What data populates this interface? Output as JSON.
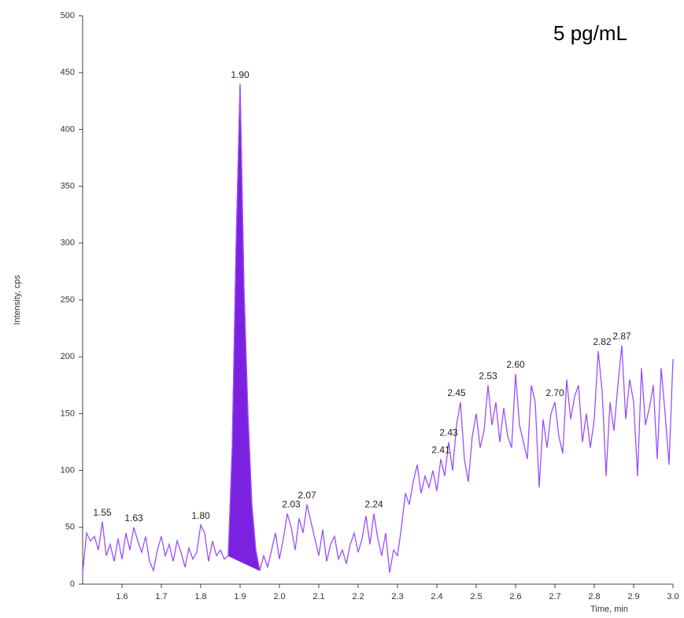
{
  "chart_data": {
    "type": "line",
    "title": "5 pg/mL",
    "x_label": "Time, min",
    "y_label": "Intensity, cps",
    "xlim": [
      1.5,
      3.0
    ],
    "ylim": [
      0,
      500
    ],
    "xticks": [
      1.6,
      1.7,
      1.8,
      1.9,
      {
        "value": 2,
        "label": "2.0"
      },
      2.1,
      2.2,
      2.3,
      2.4,
      2.5,
      2.6,
      2.7,
      2.8,
      2.9,
      {
        "value": 3,
        "label": "3.0"
      }
    ],
    "yticks": [
      0,
      50,
      100,
      150,
      200,
      250,
      300,
      350,
      400,
      450,
      500
    ],
    "fill_range": [
      1.87,
      1.95
    ],
    "x": [
      1.5,
      1.51,
      1.52,
      1.53,
      1.54,
      1.55,
      1.56,
      1.57,
      1.58,
      1.59,
      1.6,
      1.61,
      1.62,
      1.63,
      1.64,
      1.65,
      1.66,
      1.67,
      1.68,
      1.69,
      1.7,
      1.71,
      1.72,
      1.73,
      1.74,
      1.75,
      1.76,
      1.77,
      1.78,
      1.79,
      1.8,
      1.81,
      1.82,
      1.83,
      1.84,
      1.85,
      1.86,
      1.87,
      1.88,
      1.89,
      1.9,
      1.91,
      1.92,
      1.93,
      1.94,
      1.95,
      1.96,
      1.97,
      1.98,
      1.99,
      2.0,
      2.01,
      2.02,
      2.03,
      2.04,
      2.05,
      2.06,
      2.07,
      2.08,
      2.09,
      2.1,
      2.11,
      2.12,
      2.13,
      2.14,
      2.15,
      2.16,
      2.17,
      2.18,
      2.19,
      2.2,
      2.21,
      2.22,
      2.23,
      2.24,
      2.25,
      2.26,
      2.27,
      2.28,
      2.29,
      2.3,
      2.31,
      2.32,
      2.33,
      2.34,
      2.35,
      2.36,
      2.37,
      2.38,
      2.39,
      2.4,
      2.41,
      2.42,
      2.43,
      2.44,
      2.45,
      2.46,
      2.47,
      2.48,
      2.49,
      2.5,
      2.51,
      2.52,
      2.53,
      2.54,
      2.55,
      2.56,
      2.57,
      2.58,
      2.59,
      2.6,
      2.61,
      2.62,
      2.63,
      2.64,
      2.65,
      2.66,
      2.67,
      2.68,
      2.69,
      2.7,
      2.71,
      2.72,
      2.73,
      2.74,
      2.75,
      2.76,
      2.77,
      2.78,
      2.79,
      2.8,
      2.81,
      2.82,
      2.83,
      2.84,
      2.85,
      2.86,
      2.87,
      2.88,
      2.89,
      2.9,
      2.91,
      2.92,
      2.93,
      2.94,
      2.95,
      2.96,
      2.97,
      2.98,
      2.99,
      3.0
    ],
    "series": [
      {
        "color": "#9b4dff",
        "fill_color": "#7b22e0",
        "values": [
          10,
          45,
          38,
          42,
          30,
          55,
          25,
          35,
          20,
          40,
          22,
          45,
          30,
          50,
          38,
          28,
          42,
          20,
          12,
          30,
          42,
          25,
          35,
          20,
          38,
          28,
          15,
          32,
          22,
          28,
          52,
          45,
          20,
          38,
          25,
          30,
          22,
          25,
          120,
          300,
          440,
          260,
          150,
          70,
          30,
          12,
          25,
          15,
          30,
          45,
          22,
          40,
          62,
          50,
          30,
          58,
          45,
          70,
          55,
          40,
          25,
          48,
          20,
          35,
          42,
          22,
          30,
          18,
          35,
          45,
          28,
          40,
          60,
          35,
          62,
          40,
          25,
          45,
          10,
          30,
          25,
          50,
          80,
          70,
          90,
          105,
          80,
          95,
          85,
          100,
          82,
          110,
          95,
          125,
          100,
          140,
          160,
          110,
          90,
          130,
          150,
          120,
          135,
          175,
          140,
          160,
          125,
          155,
          130,
          120,
          185,
          140,
          125,
          110,
          175,
          160,
          85,
          145,
          120,
          150,
          160,
          130,
          115,
          180,
          145,
          165,
          175,
          125,
          150,
          120,
          145,
          205,
          170,
          95,
          160,
          135,
          175,
          210,
          145,
          180,
          160,
          95,
          190,
          140,
          155,
          175,
          110,
          190,
          150,
          105,
          198
        ]
      }
    ],
    "annotations": [
      {
        "x": 1.55,
        "y": 55,
        "label": "1.55"
      },
      {
        "x": 1.63,
        "y": 50,
        "label": "1.63"
      },
      {
        "x": 1.8,
        "y": 52,
        "label": "1.80"
      },
      {
        "x": 1.9,
        "y": 440,
        "label": "1.90"
      },
      {
        "x": 2.03,
        "y": 62,
        "label": "2.03"
      },
      {
        "x": 2.07,
        "y": 70,
        "label": "2.07"
      },
      {
        "x": 2.24,
        "y": 62,
        "label": "2.24"
      },
      {
        "x": 2.41,
        "y": 110,
        "label": "2.41"
      },
      {
        "x": 2.43,
        "y": 125,
        "label": "2.43"
      },
      {
        "x": 2.45,
        "y": 160,
        "label": "2.45"
      },
      {
        "x": 2.53,
        "y": 175,
        "label": "2.53"
      },
      {
        "x": 2.6,
        "y": 185,
        "label": "2.60"
      },
      {
        "x": 2.7,
        "y": 160,
        "label": "2.70"
      },
      {
        "x": 2.82,
        "y": 205,
        "label": "2.82"
      },
      {
        "x": 2.87,
        "y": 210,
        "label": "2.87"
      }
    ]
  }
}
